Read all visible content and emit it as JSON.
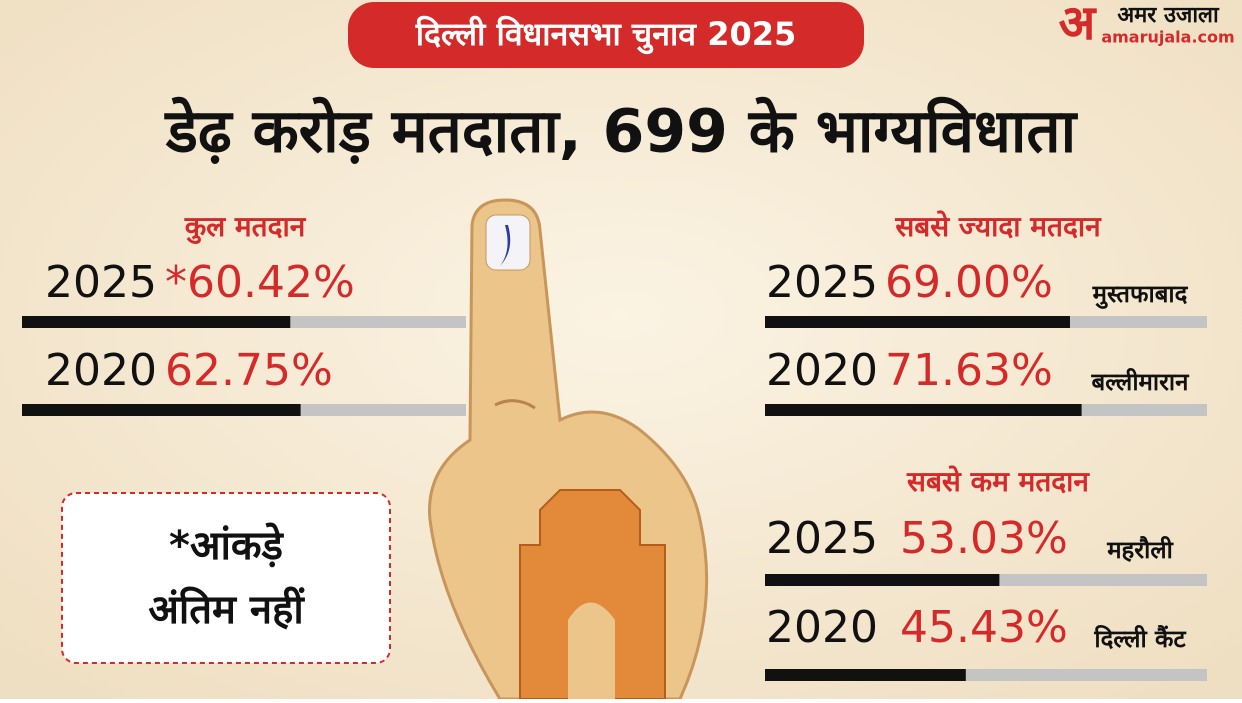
{
  "header": {
    "badge": "दिल्ली विधानसभा चुनाव 2025",
    "logo_mark": "अ",
    "logo_name": "अमर उजाला",
    "logo_site": "amarujala.com",
    "title": "डेढ़ करोड़ मतदाता, 699 के भाग्यविधाता"
  },
  "sections": [
    {
      "heading": "कुल मतदान",
      "rows": [
        {
          "year": "2025",
          "value": 60.42,
          "value_label": "*60.42%"
        },
        {
          "year": "2020",
          "value": 62.75,
          "value_label": "62.75%"
        }
      ]
    },
    {
      "heading": "सबसे ज्यादा मतदान",
      "rows": [
        {
          "year": "2025",
          "value": 69.0,
          "value_label": "69.00%",
          "place": "मुस्तफाबाद"
        },
        {
          "year": "2020",
          "value": 71.63,
          "value_label": "71.63%",
          "place": "बल्लीमारान"
        }
      ]
    },
    {
      "heading": "सबसे कम मतदान",
      "rows": [
        {
          "year": "2025",
          "value": 53.03,
          "value_label": "53.03%",
          "place": "महरौली"
        },
        {
          "year": "2020",
          "value": 45.43,
          "value_label": "45.43%",
          "place": "दिल्ली कैंट"
        }
      ]
    }
  ],
  "note": {
    "line1": "*आंकड़े",
    "line2": "अंतिम नहीं"
  }
}
